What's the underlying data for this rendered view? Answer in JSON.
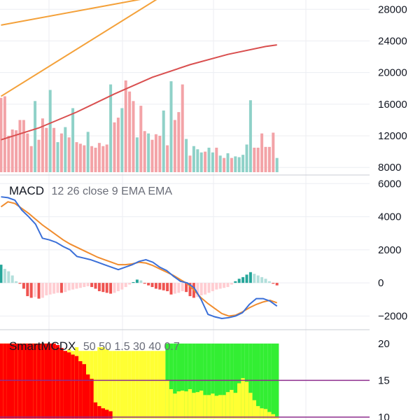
{
  "colors": {
    "background": "#ffffff",
    "grid": "#eceef2",
    "separator": "#c9ccd3",
    "volume_up": "#8fd1c8",
    "volume_down": "#f3a3a7",
    "ma_fast": "#f4a13a",
    "ma_slow": "#d94f4f",
    "macd_line": "#3a6fd8",
    "signal_line": "#f08c2e",
    "hist_pos_strong": "#26a69a",
    "hist_pos_weak": "#b2dfdb",
    "hist_neg_strong": "#ef5350",
    "hist_neg_weak": "#ffcdd2",
    "smart_red": "#ff0000",
    "smart_yellow": "#ffff33",
    "smart_green": "#33ee33",
    "smart_level_line": "#8e2c8e"
  },
  "chart_data": [
    {
      "type": "bar",
      "panel": "volume",
      "y_ticks": [
        "28000",
        "24000",
        "20000",
        "16000",
        "12000",
        "8000"
      ],
      "y_tick_values": [
        28000,
        24000,
        20000,
        16000,
        12000,
        8000
      ],
      "ylim": [
        7400,
        29000
      ],
      "volume": [
        16800,
        17000,
        12000,
        12800,
        12700,
        14000,
        14000,
        12300,
        10700,
        16400,
        11500,
        14200,
        13000,
        17800,
        13000,
        11200,
        12300,
        13100,
        11800,
        15500,
        11200,
        11000,
        10800,
        12500,
        10700,
        10500,
        11100,
        10700,
        10900,
        18500,
        13700,
        14300,
        15500,
        19000,
        17600,
        16400,
        11800,
        15800,
        12600,
        12300,
        11500,
        12200,
        12000,
        15200,
        10800,
        18900,
        14000,
        15000,
        18500,
        11600,
        9500,
        10700,
        10300,
        9900,
        10000,
        10500,
        9900,
        10500,
        9500,
        9200,
        9800,
        9200,
        9400,
        9300,
        9600,
        10900,
        16500,
        10500,
        10500,
        12300,
        10600,
        10600,
        12400,
        9200
      ],
      "up": [
        0,
        0,
        0,
        0,
        0,
        0,
        0,
        0,
        0,
        1,
        0,
        0,
        0,
        1,
        0,
        1,
        0,
        1,
        0,
        1,
        0,
        0,
        0,
        1,
        0,
        0,
        0,
        0,
        0,
        1,
        0,
        0,
        1,
        0,
        0,
        0,
        1,
        0,
        0,
        1,
        0,
        0,
        0,
        1,
        0,
        1,
        0,
        0,
        0,
        1,
        0,
        1,
        1,
        1,
        0,
        1,
        1,
        0,
        1,
        0,
        1,
        0,
        1,
        1,
        1,
        1,
        1,
        0,
        0,
        0,
        0,
        0,
        0,
        1
      ],
      "ma_fast": {
        "start": [
          0,
          26000
        ],
        "end": [
          43,
          29800
        ]
      },
      "ma_fast_2": {
        "start": [
          0,
          17000
        ],
        "end": [
          43,
          29800
        ]
      },
      "ma_slow": [
        [
          0,
          11500
        ],
        [
          10,
          13000
        ],
        [
          20,
          15000
        ],
        [
          30,
          17300
        ],
        [
          40,
          19400
        ],
        [
          50,
          21000
        ],
        [
          60,
          22300
        ],
        [
          70,
          23300
        ],
        [
          73,
          23500
        ]
      ]
    },
    {
      "type": "line",
      "panel": "macd",
      "name": "MACD",
      "params": "12 26 close 9 EMA EMA",
      "y_ticks": [
        "6000",
        "4000",
        "2000",
        "0",
        "−2000"
      ],
      "y_tick_values": [
        6000,
        4000,
        2000,
        0,
        -2000
      ],
      "ylim": [
        -2700,
        6350
      ],
      "macd": [
        5200,
        5150,
        5000,
        4400,
        4000,
        3550,
        2700,
        2600,
        2450,
        2200,
        2000,
        1600,
        1500,
        1400,
        1250,
        1100,
        950,
        800,
        950,
        1100,
        1300,
        1400,
        1250,
        950,
        750,
        400,
        100,
        0,
        -300,
        -1000,
        -1900,
        -2050,
        -2150,
        -2100,
        -2000,
        -1800,
        -1300,
        -950,
        -950,
        -1100,
        -1400
      ],
      "signal": [
        4600,
        4900,
        4800,
        4500,
        4200,
        3850,
        3500,
        3200,
        2900,
        2600,
        2350,
        2150,
        1950,
        1750,
        1550,
        1400,
        1250,
        1100,
        1100,
        1150,
        1250,
        1200,
        1050,
        850,
        650,
        450,
        200,
        -50,
        -450,
        -900,
        -1250,
        -1550,
        -1850,
        -2000,
        -1950,
        -1750,
        -1500,
        -1300,
        -1150,
        -1050,
        -1200
      ],
      "histogram": [
        1100,
        850,
        700,
        450,
        100,
        -50,
        -350,
        -800,
        -900,
        -850,
        -950,
        -900,
        -750,
        -700,
        -650,
        -600,
        -600,
        -550,
        -450,
        -400,
        -350,
        -300,
        -250,
        -200,
        -250,
        -350,
        -500,
        -550,
        -600,
        -650,
        -600,
        -500,
        -400,
        -250,
        -100,
        50,
        200,
        150,
        -50,
        -150,
        -250,
        -350,
        -400,
        -450,
        -500,
        -700,
        -650,
        -600,
        -500,
        -550,
        -800,
        -900,
        -850,
        -750,
        -700,
        -600,
        -500,
        -400,
        -350,
        -300,
        -250,
        -100,
        100,
        250,
        350,
        500,
        650,
        550,
        450,
        350,
        250,
        100,
        -50,
        -150
      ]
    },
    {
      "type": "area",
      "panel": "smartmcdx",
      "name": "SmartMCDX",
      "params": "50 50 1.5 30 40 0.7",
      "y_ticks": [
        "20",
        "15",
        "10"
      ],
      "y_tick_values": [
        20,
        15,
        10
      ],
      "ylim": [
        9.8,
        21.5
      ],
      "level_lines": [
        15,
        10
      ],
      "banker": [
        20,
        20,
        20,
        20,
        20,
        20,
        20,
        20,
        20,
        20,
        20,
        20,
        20,
        20,
        20,
        19.8,
        19.4,
        19.0,
        18.8,
        18.5,
        18.3,
        17.6,
        17.2,
        15.8,
        15.2,
        12.0,
        11.5,
        11.2,
        11.0,
        10.8,
        9.8,
        9.8,
        9.8,
        9.8,
        9.8,
        9.8,
        9.8,
        9.8,
        9.8,
        9.8,
        9.8,
        9.8,
        9.8,
        9.8,
        9.8,
        9.8,
        9.8,
        9.8,
        9.8,
        9.8,
        9.8,
        9.8,
        9.8,
        9.8,
        9.8,
        9.8,
        9.8,
        9.8,
        9.8,
        9.8,
        9.8,
        9.8,
        9.8,
        9.8,
        9.8,
        9.8,
        9.8,
        9.8,
        9.8,
        9.8,
        9.8,
        9.8,
        9.8,
        9.8
      ],
      "hot": [
        20,
        20,
        20,
        20,
        20,
        20,
        20,
        20,
        20,
        20,
        20,
        20,
        20,
        20,
        20,
        19.5,
        19.0,
        19.0,
        19.2,
        19.0,
        19.5,
        19.0,
        19.0,
        19.0,
        19.0,
        19.0,
        19.5,
        19.5,
        19.2,
        19.0,
        19.0,
        19.0,
        19.0,
        19.0,
        19.0,
        19.0,
        19.0,
        19.0,
        19.0,
        19.0,
        19.0,
        19.0,
        19.0,
        19.0,
        15.0,
        13.8,
        13.2,
        13.5,
        13.6,
        13.5,
        13.8,
        13.3,
        13.4,
        13.6,
        13.0,
        13.0,
        13.2,
        12.9,
        13.0,
        13.0,
        13.4,
        13.7,
        13.3,
        14.6,
        15.3,
        14.8,
        13.3,
        12.3,
        11.5,
        11.2,
        11.1,
        10.7,
        10.4,
        10.1
      ],
      "green": [
        0,
        0,
        0,
        0,
        0,
        0,
        0,
        0,
        0,
        0,
        0,
        0,
        0,
        0,
        0,
        0,
        0,
        0,
        0,
        0,
        0,
        0,
        0,
        0,
        0,
        0,
        0,
        0,
        0,
        0,
        0,
        0,
        0,
        0,
        0,
        0,
        0,
        0,
        0,
        0,
        0,
        0,
        0,
        0,
        20,
        20,
        20,
        20,
        20,
        20,
        20,
        20,
        20,
        20,
        20,
        20,
        20,
        20,
        20,
        20,
        20,
        20,
        20,
        20,
        20,
        20,
        20,
        20,
        20,
        20,
        20,
        20,
        20,
        20
      ]
    }
  ]
}
